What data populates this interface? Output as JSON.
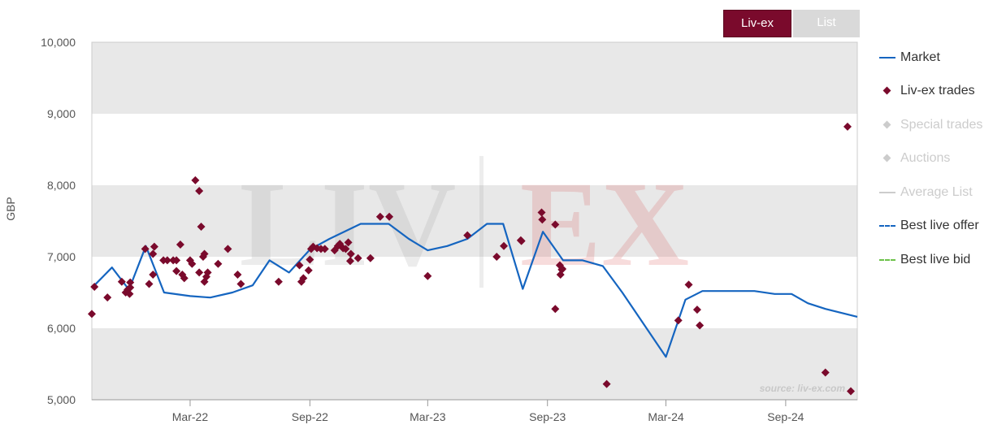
{
  "tabs": [
    {
      "label": "Liv-ex",
      "active": true
    },
    {
      "label": "List",
      "active": false
    }
  ],
  "watermark": {
    "text": "LIV|EX",
    "left": "LIV",
    "right": "EX"
  },
  "source_note": "source: liv-ex.com",
  "legend": [
    {
      "label": "Market",
      "kind": "line",
      "color": "#1565c0",
      "visible": true
    },
    {
      "label": "Liv-ex trades",
      "kind": "diamond",
      "color": "#7a0a2c",
      "visible": true
    },
    {
      "label": "Special trades",
      "kind": "diamond",
      "color": "#cccccc",
      "visible": false
    },
    {
      "label": "Auctions",
      "kind": "diamond",
      "color": "#cccccc",
      "visible": false
    },
    {
      "label": "Average List",
      "kind": "line",
      "color": "#cccccc",
      "visible": false
    },
    {
      "label": "Best live offer",
      "kind": "dash",
      "color": "#1565c0",
      "visible": true
    },
    {
      "label": "Best live bid",
      "kind": "dash",
      "color": "#6cc24a",
      "visible": true
    }
  ],
  "colors": {
    "band_gray": "#e8e8e8",
    "plot_border": "#cccccc",
    "market_line": "#1565c0",
    "trade_marker": "#7a0a2c",
    "axis_text": "#555555"
  },
  "chart_data": {
    "type": "line",
    "ylabel": "GBP",
    "xlabel": "",
    "title": "",
    "ylim": [
      5000,
      10000
    ],
    "yticks": [
      5000,
      6000,
      7000,
      8000,
      9000,
      10000
    ],
    "ytick_labels": [
      "5,000",
      "6,000",
      "7,000",
      "8,000",
      "9,000",
      "10,000"
    ],
    "xlim": [
      "2021-10-01",
      "2024-12-20"
    ],
    "xticks": [
      "2022-03-01",
      "2022-09-01",
      "2023-03-01",
      "2023-09-01",
      "2024-03-01",
      "2024-09-01"
    ],
    "xtick_labels": [
      "Mar-22",
      "Sep-22",
      "Mar-23",
      "Sep-23",
      "Mar-24",
      "Sep-24"
    ],
    "grid": "alternating horizontal bands",
    "legend_position": "right",
    "series": [
      {
        "name": "Market",
        "kind": "line",
        "points": [
          [
            "2021-10-05",
            6600
          ],
          [
            "2021-11-01",
            6850
          ],
          [
            "2021-11-27",
            6540
          ],
          [
            "2021-12-23",
            7150
          ],
          [
            "2022-01-20",
            6500
          ],
          [
            "2022-03-01",
            6450
          ],
          [
            "2022-04-01",
            6430
          ],
          [
            "2022-05-05",
            6500
          ],
          [
            "2022-06-05",
            6600
          ],
          [
            "2022-07-01",
            6950
          ],
          [
            "2022-07-31",
            6780
          ],
          [
            "2022-09-01",
            7100
          ],
          [
            "2022-10-01",
            7250
          ],
          [
            "2022-11-18",
            7460
          ],
          [
            "2022-12-31",
            7460
          ],
          [
            "2023-01-31",
            7250
          ],
          [
            "2023-03-01",
            7090
          ],
          [
            "2023-03-31",
            7150
          ],
          [
            "2023-05-01",
            7250
          ],
          [
            "2023-05-31",
            7460
          ],
          [
            "2023-06-25",
            7460
          ],
          [
            "2023-07-25",
            6550
          ],
          [
            "2023-08-25",
            7350
          ],
          [
            "2023-09-25",
            6950
          ],
          [
            "2023-10-25",
            6950
          ],
          [
            "2023-11-25",
            6870
          ],
          [
            "2023-12-25",
            6500
          ],
          [
            "2024-03-01",
            5600
          ],
          [
            "2024-03-31",
            6400
          ],
          [
            "2024-04-26",
            6520
          ],
          [
            "2024-06-01",
            6520
          ],
          [
            "2024-07-15",
            6520
          ],
          [
            "2024-08-15",
            6480
          ],
          [
            "2024-09-10",
            6480
          ],
          [
            "2024-10-05",
            6350
          ],
          [
            "2024-11-01",
            6270
          ],
          [
            "2024-12-20",
            6160
          ]
        ]
      },
      {
        "name": "Liv-ex trades",
        "kind": "scatter",
        "points": [
          [
            "2021-10-01",
            6200
          ],
          [
            "2021-10-05",
            6580
          ],
          [
            "2021-10-25",
            6430
          ],
          [
            "2021-11-16",
            6650
          ],
          [
            "2021-11-22",
            6500
          ],
          [
            "2021-11-25",
            6540
          ],
          [
            "2021-11-28",
            6480
          ],
          [
            "2021-11-29",
            6570
          ],
          [
            "2021-11-29",
            6640
          ],
          [
            "2021-12-22",
            7110
          ],
          [
            "2021-12-28",
            6620
          ],
          [
            "2022-01-03",
            6750
          ],
          [
            "2022-01-03",
            7040
          ],
          [
            "2022-01-05",
            7140
          ],
          [
            "2022-01-19",
            6950
          ],
          [
            "2022-01-25",
            6950
          ],
          [
            "2022-02-03",
            6950
          ],
          [
            "2022-02-08",
            6950
          ],
          [
            "2022-02-08",
            6800
          ],
          [
            "2022-02-14",
            7170
          ],
          [
            "2022-02-17",
            6750
          ],
          [
            "2022-02-20",
            6700
          ],
          [
            "2022-03-01",
            6950
          ],
          [
            "2022-03-04",
            6900
          ],
          [
            "2022-03-09",
            8070
          ],
          [
            "2022-03-15",
            7920
          ],
          [
            "2022-03-15",
            6780
          ],
          [
            "2022-03-18",
            7420
          ],
          [
            "2022-03-21",
            7000
          ],
          [
            "2022-03-23",
            7040
          ],
          [
            "2022-03-23",
            6650
          ],
          [
            "2022-03-26",
            6720
          ],
          [
            "2022-03-28",
            6780
          ],
          [
            "2022-04-13",
            6900
          ],
          [
            "2022-04-28",
            7110
          ],
          [
            "2022-05-13",
            6750
          ],
          [
            "2022-05-18",
            6620
          ],
          [
            "2022-07-15",
            6650
          ],
          [
            "2022-08-16",
            6880
          ],
          [
            "2022-08-19",
            6650
          ],
          [
            "2022-08-22",
            6700
          ],
          [
            "2022-08-30",
            6810
          ],
          [
            "2022-09-01",
            6960
          ],
          [
            "2022-09-03",
            7110
          ],
          [
            "2022-09-06",
            7140
          ],
          [
            "2022-09-12",
            7120
          ],
          [
            "2022-09-18",
            7110
          ],
          [
            "2022-09-24",
            7110
          ],
          [
            "2022-10-09",
            7090
          ],
          [
            "2022-10-14",
            7150
          ],
          [
            "2022-10-17",
            7180
          ],
          [
            "2022-10-22",
            7120
          ],
          [
            "2022-10-26",
            7110
          ],
          [
            "2022-10-30",
            7200
          ],
          [
            "2022-11-02",
            6940
          ],
          [
            "2022-11-03",
            7040
          ],
          [
            "2022-11-14",
            6980
          ],
          [
            "2022-12-03",
            6980
          ],
          [
            "2022-12-18",
            7560
          ],
          [
            "2023-01-01",
            7560
          ],
          [
            "2023-03-01",
            6730
          ],
          [
            "2023-05-01",
            7300
          ],
          [
            "2023-06-15",
            7000
          ],
          [
            "2023-06-26",
            7150
          ],
          [
            "2023-07-22",
            7230
          ],
          [
            "2023-07-23",
            7220
          ],
          [
            "2023-08-23",
            7620
          ],
          [
            "2023-08-24",
            7520
          ],
          [
            "2023-09-13",
            7450
          ],
          [
            "2023-09-13",
            6270
          ],
          [
            "2023-09-20",
            6880
          ],
          [
            "2023-09-21",
            6750
          ],
          [
            "2023-09-23",
            6820
          ],
          [
            "2023-09-24",
            6830
          ],
          [
            "2023-12-01",
            5220
          ],
          [
            "2024-03-20",
            6110
          ],
          [
            "2024-04-05",
            6610
          ],
          [
            "2024-04-18",
            6260
          ],
          [
            "2024-04-22",
            6040
          ],
          [
            "2024-11-01",
            5380
          ],
          [
            "2024-12-05",
            8820
          ],
          [
            "2024-12-10",
            5120
          ]
        ]
      }
    ]
  }
}
